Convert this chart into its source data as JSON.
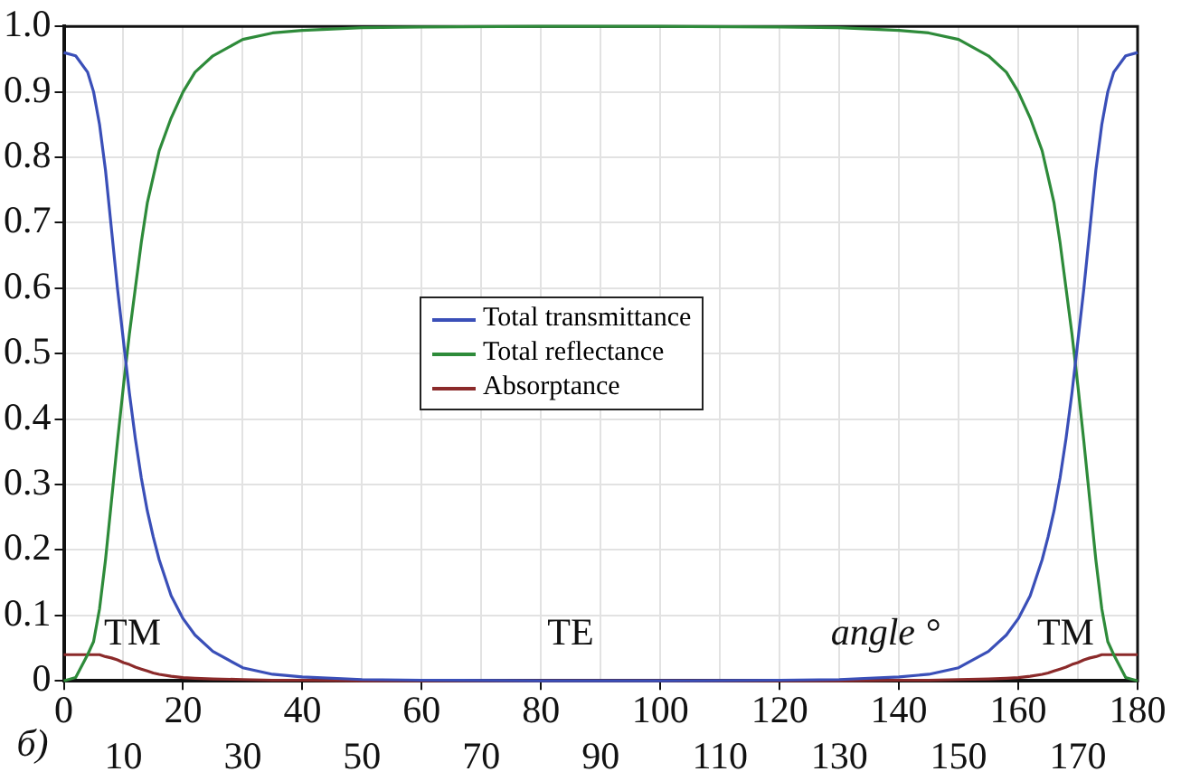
{
  "chart_data": {
    "type": "line",
    "xlabel": "angle °",
    "x": [
      0,
      2,
      4,
      5,
      6,
      7,
      8,
      9,
      10,
      11,
      12,
      13,
      14,
      15,
      16,
      18,
      20,
      22,
      25,
      30,
      35,
      40,
      50,
      60,
      80,
      100,
      120,
      130,
      140,
      145,
      150,
      155,
      158,
      160,
      162,
      164,
      165,
      166,
      167,
      168,
      169,
      170,
      171,
      172,
      173,
      174,
      175,
      176,
      178,
      180
    ],
    "series": [
      {
        "name": "Total transmittance",
        "color": "#3a4fb8",
        "values": [
          0.96,
          0.955,
          0.93,
          0.9,
          0.85,
          0.78,
          0.69,
          0.6,
          0.52,
          0.44,
          0.37,
          0.31,
          0.26,
          0.22,
          0.185,
          0.13,
          0.095,
          0.07,
          0.045,
          0.02,
          0.01,
          0.006,
          0.002,
          0.001,
          0,
          0,
          0.001,
          0.002,
          0.006,
          0.01,
          0.02,
          0.045,
          0.07,
          0.095,
          0.13,
          0.185,
          0.22,
          0.26,
          0.31,
          0.37,
          0.44,
          0.52,
          0.6,
          0.69,
          0.78,
          0.85,
          0.9,
          0.93,
          0.955,
          0.96
        ]
      },
      {
        "name": "Total reflectance",
        "color": "#2e8b3a",
        "values": [
          0,
          0.005,
          0.04,
          0.06,
          0.11,
          0.185,
          0.275,
          0.365,
          0.45,
          0.53,
          0.6,
          0.67,
          0.73,
          0.77,
          0.81,
          0.86,
          0.9,
          0.93,
          0.955,
          0.98,
          0.99,
          0.994,
          0.998,
          0.999,
          1,
          1,
          0.999,
          0.998,
          0.994,
          0.99,
          0.98,
          0.955,
          0.93,
          0.9,
          0.86,
          0.81,
          0.77,
          0.73,
          0.67,
          0.6,
          0.53,
          0.45,
          0.365,
          0.275,
          0.185,
          0.11,
          0.06,
          0.04,
          0.005,
          0
        ]
      },
      {
        "name": "Absorptance",
        "color": "#8b2a2a",
        "values": [
          0.04,
          0.04,
          0.04,
          0.04,
          0.04,
          0.037,
          0.035,
          0.032,
          0.028,
          0.025,
          0.021,
          0.018,
          0.015,
          0.012,
          0.01,
          0.007,
          0.005,
          0.004,
          0.003,
          0.002,
          0.001,
          0.001,
          0,
          0,
          0,
          0,
          0,
          0,
          0.001,
          0.001,
          0.002,
          0.003,
          0.004,
          0.005,
          0.007,
          0.01,
          0.012,
          0.015,
          0.018,
          0.021,
          0.025,
          0.028,
          0.032,
          0.035,
          0.037,
          0.04,
          0.04,
          0.04,
          0.04,
          0.04
        ]
      }
    ],
    "xlim": [
      0,
      180
    ],
    "xticks": [
      0,
      20,
      40,
      60,
      80,
      100,
      120,
      140,
      160,
      180
    ],
    "x2lim": [
      0,
      180
    ],
    "x2ticks": [
      10,
      30,
      50,
      70,
      90,
      110,
      130,
      150,
      170
    ],
    "ylim": [
      0,
      1
    ],
    "yticks": [
      0,
      0.1,
      0.2,
      0.3,
      0.4,
      0.5,
      0.6,
      0.7,
      0.8,
      0.9,
      {
        "value": 1,
        "label": "1.0"
      }
    ],
    "grid": true,
    "legend": "center",
    "marker": "none",
    "line_style": "solid",
    "annotations": [
      "TM",
      "TE",
      "TM",
      "б)"
    ]
  }
}
